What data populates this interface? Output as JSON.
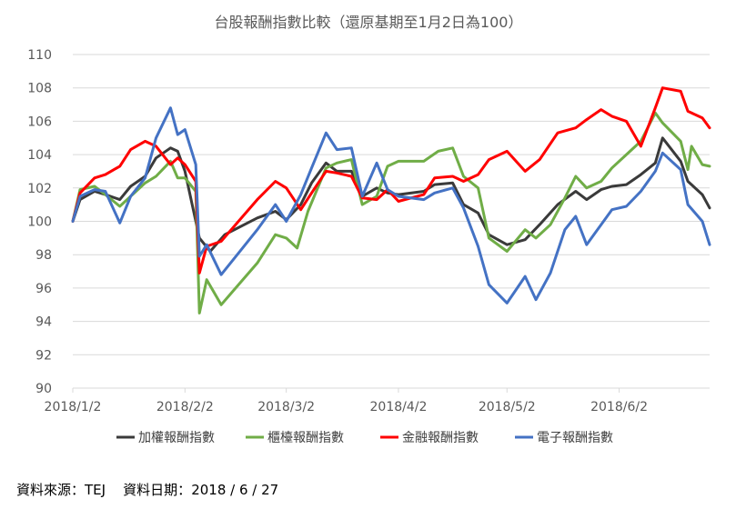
{
  "chart_data": {
    "type": "line",
    "title": "台股報酬指數比較（還原基期至1月2日為100）",
    "xlabel": "",
    "ylabel": "",
    "x_start": "2018/1/2",
    "x_end": "2018/6/27",
    "x_ticks": [
      "2018/1/2",
      "2018/2/2",
      "2018/3/2",
      "2018/4/2",
      "2018/5/2",
      "2018/6/2"
    ],
    "ylim": [
      90,
      110
    ],
    "y_ticks": [
      90,
      92,
      94,
      96,
      98,
      100,
      102,
      104,
      106,
      108,
      110
    ],
    "grid": "horizontal",
    "legend_position": "bottom",
    "series": [
      {
        "name": "加權報酬指數",
        "color": "#3a3a3a",
        "points": [
          [
            "2018/1/2",
            100.0
          ],
          [
            "2018/1/4",
            101.3
          ],
          [
            "2018/1/8",
            101.8
          ],
          [
            "2018/1/11",
            101.6
          ],
          [
            "2018/1/15",
            101.3
          ],
          [
            "2018/1/18",
            102.1
          ],
          [
            "2018/1/22",
            102.7
          ],
          [
            "2018/1/25",
            103.8
          ],
          [
            "2018/1/29",
            104.4
          ],
          [
            "2018/1/31",
            104.2
          ],
          [
            "2018/2/2",
            103.0
          ],
          [
            "2018/2/6",
            99.0
          ],
          [
            "2018/2/9",
            98.2
          ],
          [
            "2018/2/13",
            99.2
          ],
          [
            "2018/2/22",
            100.2
          ],
          [
            "2018/2/27",
            100.6
          ],
          [
            "2018/3/2",
            100.1
          ],
          [
            "2018/3/6",
            101.0
          ],
          [
            "2018/3/9",
            102.3
          ],
          [
            "2018/3/13",
            103.5
          ],
          [
            "2018/3/16",
            103.0
          ],
          [
            "2018/3/20",
            103.0
          ],
          [
            "2018/3/23",
            101.5
          ],
          [
            "2018/3/27",
            102.0
          ],
          [
            "2018/3/30",
            101.7
          ],
          [
            "2018/4/2",
            101.6
          ],
          [
            "2018/4/9",
            101.8
          ],
          [
            "2018/4/12",
            102.2
          ],
          [
            "2018/4/17",
            102.3
          ],
          [
            "2018/4/20",
            101.0
          ],
          [
            "2018/4/24",
            100.5
          ],
          [
            "2018/4/27",
            99.2
          ],
          [
            "2018/5/2",
            98.6
          ],
          [
            "2018/5/7",
            98.9
          ],
          [
            "2018/5/11",
            99.8
          ],
          [
            "2018/5/16",
            101.0
          ],
          [
            "2018/5/21",
            101.8
          ],
          [
            "2018/5/24",
            101.3
          ],
          [
            "2018/5/28",
            101.9
          ],
          [
            "2018/5/31",
            102.1
          ],
          [
            "2018/6/4",
            102.2
          ],
          [
            "2018/6/8",
            102.8
          ],
          [
            "2018/6/12",
            103.5
          ],
          [
            "2018/6/14",
            105.0
          ],
          [
            "2018/6/19",
            103.6
          ],
          [
            "2018/6/21",
            102.4
          ],
          [
            "2018/6/25",
            101.6
          ],
          [
            "2018/6/27",
            100.8
          ]
        ]
      },
      {
        "name": "櫃檯報酬指數",
        "color": "#70ad47",
        "points": [
          [
            "2018/1/2",
            100.0
          ],
          [
            "2018/1/4",
            101.9
          ],
          [
            "2018/1/8",
            102.1
          ],
          [
            "2018/1/11",
            101.6
          ],
          [
            "2018/1/15",
            100.9
          ],
          [
            "2018/1/18",
            101.5
          ],
          [
            "2018/1/22",
            102.3
          ],
          [
            "2018/1/25",
            102.7
          ],
          [
            "2018/1/29",
            103.6
          ],
          [
            "2018/1/31",
            102.6
          ],
          [
            "2018/2/2",
            102.6
          ],
          [
            "2018/2/5",
            101.8
          ],
          [
            "2018/2/6",
            94.5
          ],
          [
            "2018/2/8",
            96.5
          ],
          [
            "2018/2/12",
            95.0
          ],
          [
            "2018/2/22",
            97.5
          ],
          [
            "2018/2/27",
            99.2
          ],
          [
            "2018/3/2",
            99.0
          ],
          [
            "2018/3/5",
            98.4
          ],
          [
            "2018/3/8",
            100.6
          ],
          [
            "2018/3/13",
            103.2
          ],
          [
            "2018/3/16",
            103.5
          ],
          [
            "2018/3/20",
            103.7
          ],
          [
            "2018/3/23",
            101.0
          ],
          [
            "2018/3/27",
            101.5
          ],
          [
            "2018/3/30",
            103.3
          ],
          [
            "2018/4/2",
            103.6
          ],
          [
            "2018/4/9",
            103.6
          ],
          [
            "2018/4/13",
            104.2
          ],
          [
            "2018/4/17",
            104.4
          ],
          [
            "2018/4/20",
            102.7
          ],
          [
            "2018/4/24",
            102.0
          ],
          [
            "2018/4/27",
            99.0
          ],
          [
            "2018/5/2",
            98.2
          ],
          [
            "2018/5/7",
            99.5
          ],
          [
            "2018/5/10",
            99.0
          ],
          [
            "2018/5/14",
            99.8
          ],
          [
            "2018/5/18",
            101.4
          ],
          [
            "2018/5/21",
            102.7
          ],
          [
            "2018/5/24",
            102.0
          ],
          [
            "2018/5/28",
            102.4
          ],
          [
            "2018/5/31",
            103.2
          ],
          [
            "2018/6/4",
            104.0
          ],
          [
            "2018/6/8",
            104.8
          ],
          [
            "2018/6/12",
            106.5
          ],
          [
            "2018/6/14",
            105.9
          ],
          [
            "2018/6/19",
            104.8
          ],
          [
            "2018/6/21",
            103.1
          ],
          [
            "2018/6/22",
            104.5
          ],
          [
            "2018/6/25",
            103.4
          ],
          [
            "2018/6/27",
            103.3
          ]
        ]
      },
      {
        "name": "金融報酬指數",
        "color": "#ff0000",
        "points": [
          [
            "2018/1/2",
            100.0
          ],
          [
            "2018/1/4",
            101.7
          ],
          [
            "2018/1/8",
            102.6
          ],
          [
            "2018/1/11",
            102.8
          ],
          [
            "2018/1/15",
            103.3
          ],
          [
            "2018/1/18",
            104.3
          ],
          [
            "2018/1/22",
            104.8
          ],
          [
            "2018/1/25",
            104.5
          ],
          [
            "2018/1/29",
            103.4
          ],
          [
            "2018/1/31",
            103.8
          ],
          [
            "2018/2/2",
            103.4
          ],
          [
            "2018/2/5",
            102.4
          ],
          [
            "2018/2/6",
            96.9
          ],
          [
            "2018/2/8",
            98.5
          ],
          [
            "2018/2/12",
            98.8
          ],
          [
            "2018/2/22",
            101.3
          ],
          [
            "2018/2/27",
            102.4
          ],
          [
            "2018/3/2",
            102.0
          ],
          [
            "2018/3/6",
            100.7
          ],
          [
            "2018/3/9",
            101.7
          ],
          [
            "2018/3/13",
            103.0
          ],
          [
            "2018/3/16",
            102.9
          ],
          [
            "2018/3/20",
            102.7
          ],
          [
            "2018/3/23",
            101.4
          ],
          [
            "2018/3/27",
            101.3
          ],
          [
            "2018/3/30",
            101.9
          ],
          [
            "2018/4/2",
            101.2
          ],
          [
            "2018/4/9",
            101.6
          ],
          [
            "2018/4/12",
            102.6
          ],
          [
            "2018/4/17",
            102.7
          ],
          [
            "2018/4/20",
            102.4
          ],
          [
            "2018/4/24",
            102.8
          ],
          [
            "2018/4/27",
            103.7
          ],
          [
            "2018/5/2",
            104.2
          ],
          [
            "2018/5/7",
            103.0
          ],
          [
            "2018/5/11",
            103.7
          ],
          [
            "2018/5/16",
            105.3
          ],
          [
            "2018/5/21",
            105.6
          ],
          [
            "2018/5/24",
            106.1
          ],
          [
            "2018/5/28",
            106.7
          ],
          [
            "2018/5/31",
            106.3
          ],
          [
            "2018/6/4",
            106.0
          ],
          [
            "2018/6/8",
            104.5
          ],
          [
            "2018/6/12",
            106.8
          ],
          [
            "2018/6/14",
            108.0
          ],
          [
            "2018/6/19",
            107.8
          ],
          [
            "2018/6/21",
            106.6
          ],
          [
            "2018/6/25",
            106.2
          ],
          [
            "2018/6/27",
            105.6
          ]
        ]
      },
      {
        "name": "電子報酬指數",
        "color": "#4472c4",
        "points": [
          [
            "2018/1/2",
            100.0
          ],
          [
            "2018/1/4",
            101.5
          ],
          [
            "2018/1/8",
            101.9
          ],
          [
            "2018/1/11",
            101.8
          ],
          [
            "2018/1/15",
            99.9
          ],
          [
            "2018/1/18",
            101.5
          ],
          [
            "2018/1/22",
            102.6
          ],
          [
            "2018/1/25",
            105.0
          ],
          [
            "2018/1/29",
            106.8
          ],
          [
            "2018/1/31",
            105.2
          ],
          [
            "2018/2/2",
            105.5
          ],
          [
            "2018/2/5",
            103.4
          ],
          [
            "2018/2/6",
            97.9
          ],
          [
            "2018/2/8",
            98.6
          ],
          [
            "2018/2/12",
            96.8
          ],
          [
            "2018/2/22",
            99.5
          ],
          [
            "2018/2/27",
            101.0
          ],
          [
            "2018/3/2",
            100.0
          ],
          [
            "2018/3/6",
            101.6
          ],
          [
            "2018/3/9",
            103.2
          ],
          [
            "2018/3/13",
            105.3
          ],
          [
            "2018/3/16",
            104.3
          ],
          [
            "2018/3/20",
            104.4
          ],
          [
            "2018/3/23",
            101.5
          ],
          [
            "2018/3/27",
            103.5
          ],
          [
            "2018/3/30",
            101.9
          ],
          [
            "2018/4/2",
            101.5
          ],
          [
            "2018/4/9",
            101.3
          ],
          [
            "2018/4/12",
            101.7
          ],
          [
            "2018/4/17",
            102.0
          ],
          [
            "2018/4/20",
            100.8
          ],
          [
            "2018/4/24",
            98.5
          ],
          [
            "2018/4/27",
            96.2
          ],
          [
            "2018/5/2",
            95.1
          ],
          [
            "2018/5/7",
            96.7
          ],
          [
            "2018/5/10",
            95.3
          ],
          [
            "2018/5/14",
            96.9
          ],
          [
            "2018/5/18",
            99.5
          ],
          [
            "2018/5/21",
            100.3
          ],
          [
            "2018/5/24",
            98.6
          ],
          [
            "2018/5/28",
            99.8
          ],
          [
            "2018/5/31",
            100.7
          ],
          [
            "2018/6/4",
            100.9
          ],
          [
            "2018/6/8",
            101.8
          ],
          [
            "2018/6/12",
            103.0
          ],
          [
            "2018/6/14",
            104.1
          ],
          [
            "2018/6/19",
            103.1
          ],
          [
            "2018/6/21",
            101.0
          ],
          [
            "2018/6/25",
            100.0
          ],
          [
            "2018/6/27",
            98.6
          ]
        ]
      }
    ]
  },
  "footer": {
    "source_label": "資料來源：",
    "source_value": "TEJ",
    "date_label": "資料日期：",
    "date_value": "2018 / 6 / 27"
  }
}
